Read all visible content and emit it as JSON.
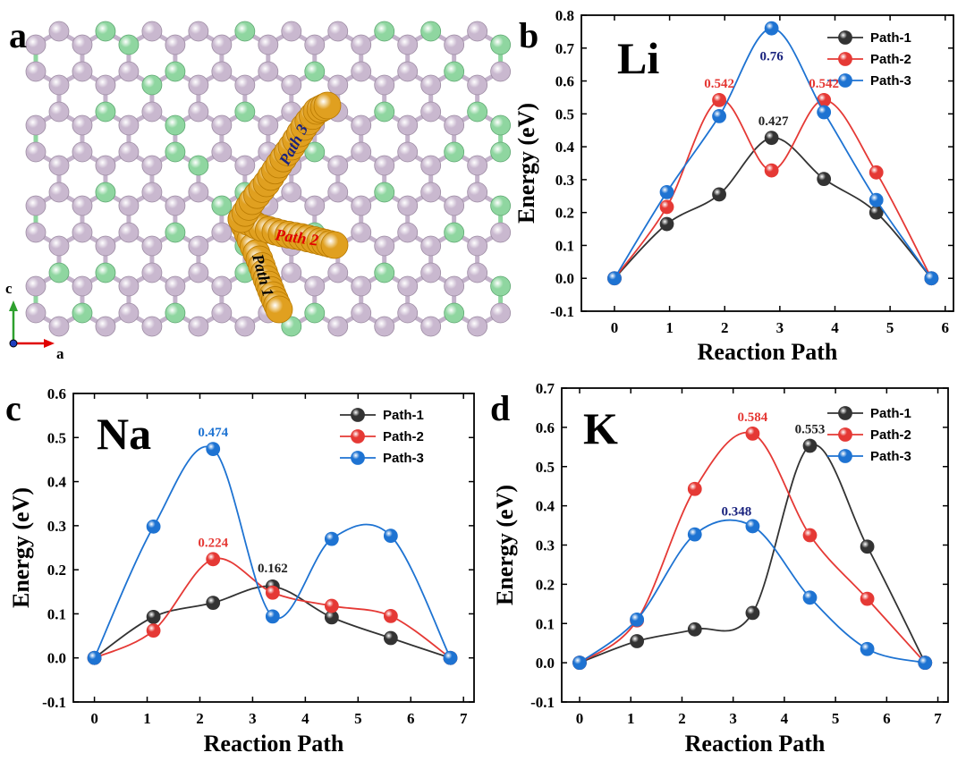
{
  "panels": {
    "a": {
      "letter": "a"
    },
    "b": {
      "letter": "b"
    },
    "c": {
      "letter": "c"
    },
    "d": {
      "letter": "d"
    }
  },
  "structure": {
    "path_labels": [
      "Path 1",
      "Path 2",
      "Path 3"
    ],
    "path_label_colors": [
      "#000000",
      "#e00000",
      "#1a237e"
    ],
    "axis_c": "c",
    "axis_a": "a",
    "atom_colors": {
      "carbon": "#c9b8cf",
      "boron": "#8fd6a0",
      "metal": "#e0a020"
    }
  },
  "colors": {
    "path1": "#333333",
    "path2": "#e53935",
    "path3": "#1e73d2"
  },
  "chart_data": [
    {
      "id": "b",
      "type": "line",
      "title": "Li",
      "xlabel": "Reaction Path",
      "ylabel": "Energy (eV)",
      "xlim": [
        -0.6,
        6.15
      ],
      "ylim": [
        -0.1,
        0.8
      ],
      "xticks": [
        0,
        1,
        2,
        3,
        4,
        5,
        6
      ],
      "yticks": [
        -0.1,
        0.0,
        0.1,
        0.2,
        0.3,
        0.4,
        0.5,
        0.6,
        0.7,
        0.8
      ],
      "legend_position": "top-right",
      "series": [
        {
          "name": "Path-1",
          "color": "#333333",
          "x": [
            0,
            0.95,
            1.9,
            2.85,
            3.8,
            4.75,
            5.75
          ],
          "y": [
            0.0,
            0.165,
            0.255,
            0.427,
            0.302,
            0.2,
            0.0
          ]
        },
        {
          "name": "Path-2",
          "color": "#e53935",
          "x": [
            0,
            0.95,
            1.9,
            2.85,
            3.8,
            4.75,
            5.75
          ],
          "y": [
            0.0,
            0.217,
            0.542,
            0.328,
            0.542,
            0.322,
            0.0
          ]
        },
        {
          "name": "Path-3",
          "color": "#1e73d2",
          "x": [
            0,
            0.95,
            1.9,
            2.85,
            3.8,
            4.75,
            5.75
          ],
          "y": [
            0.0,
            0.262,
            0.493,
            0.76,
            0.505,
            0.238,
            0.0
          ]
        }
      ],
      "annotations": [
        {
          "text": "0.542",
          "x": 1.9,
          "y": 0.542,
          "color": "#e53935",
          "dx": 0,
          "dy": -14
        },
        {
          "text": "0.542",
          "x": 3.8,
          "y": 0.542,
          "color": "#e53935",
          "dx": 0,
          "dy": -14
        },
        {
          "text": "0.427",
          "x": 2.85,
          "y": 0.427,
          "color": "#222222",
          "dx": 2,
          "dy": -14
        },
        {
          "text": "0.76",
          "x": 2.85,
          "y": 0.76,
          "color": "#1a237e",
          "dx": 0,
          "dy": 36
        }
      ]
    },
    {
      "id": "c",
      "type": "line",
      "title": "Na",
      "xlabel": "Reaction Path",
      "ylabel": "Energy (eV)",
      "xlim": [
        -0.4,
        7.2
      ],
      "ylim": [
        -0.1,
        0.6
      ],
      "xticks": [
        0,
        1,
        2,
        3,
        4,
        5,
        6,
        7
      ],
      "yticks": [
        -0.1,
        0.0,
        0.1,
        0.2,
        0.3,
        0.4,
        0.5,
        0.6
      ],
      "legend_position": "top-right",
      "series": [
        {
          "name": "Path-1",
          "color": "#333333",
          "x": [
            0,
            1.12,
            2.25,
            3.38,
            4.5,
            5.62,
            6.75
          ],
          "y": [
            0.0,
            0.093,
            0.125,
            0.162,
            0.092,
            0.045,
            0.0
          ]
        },
        {
          "name": "Path-2",
          "color": "#e53935",
          "x": [
            0,
            1.12,
            2.25,
            3.38,
            4.5,
            5.62,
            6.75
          ],
          "y": [
            0.0,
            0.062,
            0.224,
            0.148,
            0.118,
            0.095,
            0.0
          ]
        },
        {
          "name": "Path-3",
          "color": "#1e73d2",
          "x": [
            0,
            1.12,
            2.25,
            3.38,
            4.5,
            5.62,
            6.75
          ],
          "y": [
            0.0,
            0.298,
            0.474,
            0.094,
            0.27,
            0.277,
            0.0
          ]
        }
      ],
      "annotations": [
        {
          "text": "0.474",
          "x": 2.25,
          "y": 0.474,
          "color": "#1e73d2",
          "dx": 0,
          "dy": -14
        },
        {
          "text": "0.224",
          "x": 2.25,
          "y": 0.224,
          "color": "#e53935",
          "dx": 0,
          "dy": -14
        },
        {
          "text": "0.162",
          "x": 3.38,
          "y": 0.162,
          "color": "#222222",
          "dx": 0,
          "dy": -16
        }
      ]
    },
    {
      "id": "d",
      "type": "line",
      "title": "K",
      "xlabel": "Reaction Path",
      "ylabel": "Energy (eV)",
      "xlim": [
        -0.35,
        7.2
      ],
      "ylim": [
        -0.1,
        0.7
      ],
      "xticks": [
        0,
        1,
        2,
        3,
        4,
        5,
        6,
        7
      ],
      "yticks": [
        -0.1,
        0.0,
        0.1,
        0.2,
        0.3,
        0.4,
        0.5,
        0.6,
        0.7
      ],
      "legend_position": "top-right",
      "series": [
        {
          "name": "Path-1",
          "color": "#333333",
          "x": [
            0,
            1.12,
            2.25,
            3.38,
            4.5,
            5.62,
            6.75
          ],
          "y": [
            0.0,
            0.055,
            0.085,
            0.127,
            0.553,
            0.296,
            0.0
          ]
        },
        {
          "name": "Path-2",
          "color": "#e53935",
          "x": [
            0,
            1.12,
            2.25,
            3.38,
            4.5,
            5.62,
            6.75
          ],
          "y": [
            0.0,
            0.108,
            0.443,
            0.584,
            0.325,
            0.163,
            0.0
          ]
        },
        {
          "name": "Path-3",
          "color": "#1e73d2",
          "x": [
            0,
            1.12,
            2.25,
            3.38,
            4.5,
            5.62,
            6.75
          ],
          "y": [
            0.0,
            0.11,
            0.327,
            0.348,
            0.166,
            0.035,
            0.0
          ]
        }
      ],
      "annotations": [
        {
          "text": "0.584",
          "x": 3.38,
          "y": 0.584,
          "color": "#e53935",
          "dx": 0,
          "dy": -14
        },
        {
          "text": "0.553",
          "x": 4.5,
          "y": 0.553,
          "color": "#222222",
          "dx": 0,
          "dy": -14
        },
        {
          "text": "0.348",
          "x": 3.38,
          "y": 0.348,
          "color": "#1a237e",
          "dx": -18,
          "dy": -12
        }
      ]
    }
  ]
}
